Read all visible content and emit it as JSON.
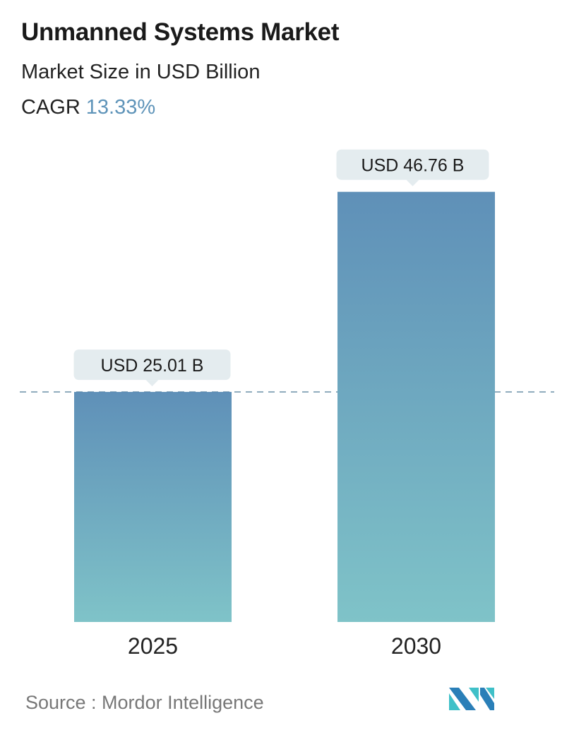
{
  "header": {
    "title": "Unmanned Systems Market",
    "subtitle": "Market Size in USD Billion",
    "cagr_label": "CAGR",
    "cagr_value": "13.33%"
  },
  "chart_data": {
    "type": "bar",
    "categories": [
      "2025",
      "2030"
    ],
    "values": [
      25.01,
      46.76
    ],
    "data_labels": [
      "USD 25.01 B",
      "USD 46.76 B"
    ],
    "unit": "USD Billion",
    "reference_line": {
      "value": 25.01,
      "style": "dashed"
    },
    "colors": {
      "bar_top": "#5f90b8",
      "bar_bottom": "#7fc3c8",
      "label_bg": "#e4ecef",
      "dash": "#4d7895"
    }
  },
  "footer": {
    "source": "Source :  Mordor Intelligence",
    "logo_text": "MI",
    "logo_colors": [
      "#2a7fb8",
      "#3fc0c8"
    ]
  }
}
